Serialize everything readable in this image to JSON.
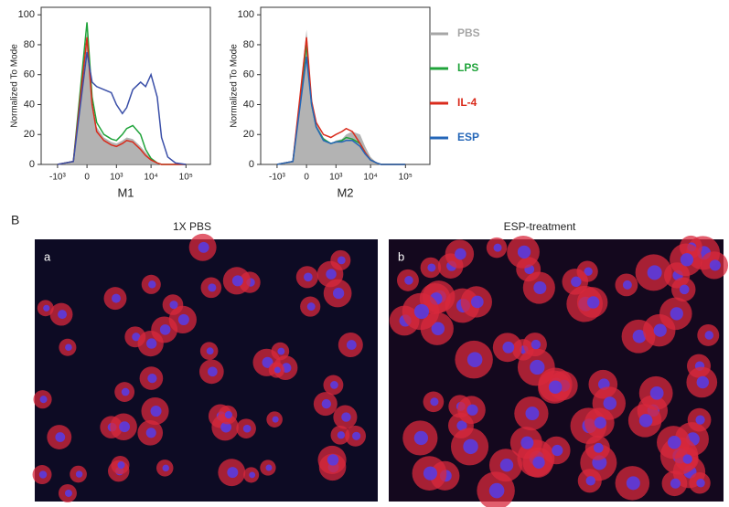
{
  "chart_data": [
    {
      "type": "line",
      "x_label": "M1",
      "y_label": "Normalized To Mode",
      "x": [
        -1000,
        -300,
        0,
        100,
        200,
        400,
        700,
        1000,
        1500,
        2000,
        3000,
        5000,
        7000,
        10000,
        15000,
        20000,
        30000,
        50000,
        100000
      ],
      "xscale": "biexponential",
      "xlim": [
        -3000,
        500000
      ],
      "xticks": [
        {
          "value": -1000,
          "label": "-10³"
        },
        0,
        {
          "value": 1000,
          "label": "10³"
        },
        {
          "value": 10000,
          "label": "10⁴"
        },
        {
          "value": 100000,
          "label": "10⁵"
        }
      ],
      "ylim": [
        0,
        105
      ],
      "yticks": [
        0,
        20,
        40,
        60,
        80,
        100
      ],
      "series": [
        {
          "name": "PBS",
          "color": "#a6a6a6",
          "filled": true,
          "values": [
            0,
            2,
            88,
            40,
            25,
            18,
            15,
            14,
            16,
            18,
            17,
            12,
            8,
            4,
            1,
            0,
            0,
            0,
            0
          ]
        },
        {
          "name": "LPS",
          "color": "#1fa33a",
          "values": [
            0,
            2,
            95,
            45,
            28,
            20,
            17,
            16,
            20,
            24,
            26,
            20,
            10,
            4,
            1,
            0,
            0,
            0,
            0
          ]
        },
        {
          "name": "IL-4",
          "color": "#d92b1c",
          "values": [
            0,
            2,
            85,
            40,
            22,
            16,
            13,
            12,
            14,
            16,
            15,
            10,
            6,
            3,
            1,
            0,
            0,
            0,
            0
          ]
        },
        {
          "name": "ESP",
          "color": "#3a4fa8",
          "values": [
            0,
            2,
            75,
            55,
            52,
            50,
            48,
            40,
            34,
            38,
            50,
            55,
            52,
            60,
            45,
            18,
            5,
            1,
            0
          ]
        }
      ]
    },
    {
      "type": "line",
      "x_label": "M2",
      "y_label": "Normalized To Mode",
      "x": [
        -1000,
        -300,
        0,
        100,
        200,
        400,
        700,
        1000,
        1500,
        2000,
        3000,
        5000,
        7000,
        10000,
        15000,
        20000,
        30000,
        50000,
        100000
      ],
      "xscale": "biexponential",
      "xlim": [
        -3000,
        500000
      ],
      "xticks": [
        {
          "value": -1000,
          "label": "-10³"
        },
        0,
        {
          "value": 1000,
          "label": "10³"
        },
        {
          "value": 10000,
          "label": "10⁴"
        },
        {
          "value": 100000,
          "label": "10⁵"
        }
      ],
      "ylim": [
        0,
        105
      ],
      "yticks": [
        0,
        20,
        40,
        60,
        80,
        100
      ],
      "legend": "right",
      "series": [
        {
          "name": "PBS",
          "color": "#a6a6a6",
          "filled": true,
          "values": [
            0,
            2,
            90,
            45,
            28,
            18,
            14,
            16,
            17,
            20,
            22,
            20,
            12,
            5,
            1,
            0,
            0,
            0,
            0
          ]
        },
        {
          "name": "LPS",
          "color": "#1fa33a",
          "values": [
            0,
            2,
            80,
            40,
            25,
            17,
            14,
            15,
            16,
            18,
            17,
            14,
            8,
            3,
            1,
            0,
            0,
            0,
            0
          ]
        },
        {
          "name": "IL-4",
          "color": "#d92b1c",
          "values": [
            0,
            2,
            85,
            42,
            28,
            20,
            18,
            20,
            22,
            24,
            22,
            14,
            8,
            3,
            1,
            0,
            0,
            0,
            0
          ]
        },
        {
          "name": "ESP",
          "color": "#2466b8",
          "values": [
            0,
            2,
            72,
            40,
            25,
            16,
            14,
            15,
            15,
            16,
            16,
            12,
            7,
            3,
            1,
            0,
            0,
            0,
            0
          ]
        }
      ]
    }
  ],
  "panel_b": {
    "label": "B",
    "images": [
      {
        "title": "1X PBS",
        "tag": "a"
      },
      {
        "title": "ESP-treatment",
        "tag": "b"
      }
    ]
  }
}
